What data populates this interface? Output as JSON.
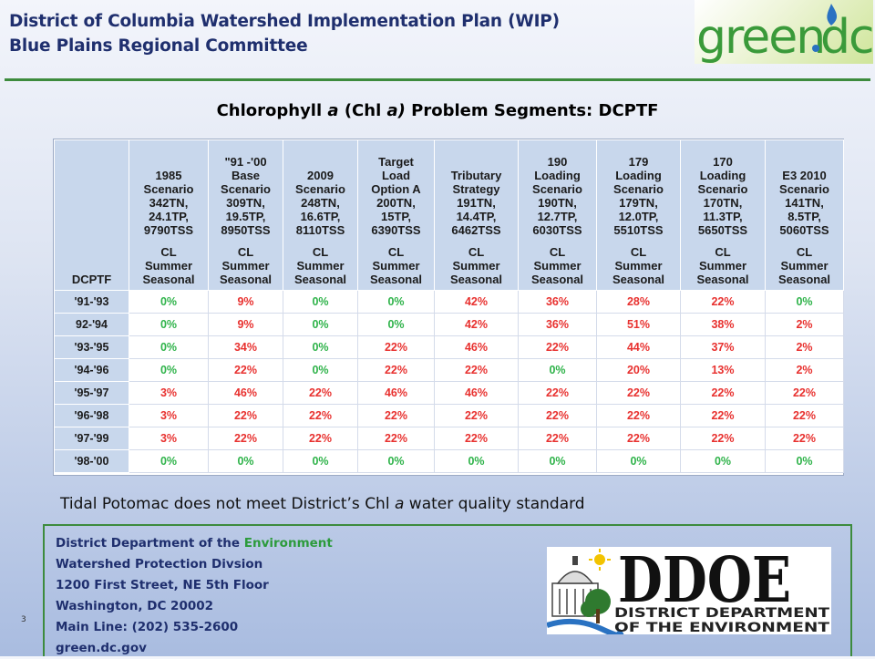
{
  "header": {
    "line1": "District of Columbia Watershed Implementation Plan (WIP)",
    "line2": "Blue Plains Regional Committee"
  },
  "logo": {
    "text_green": "green",
    "text_dc": "dc",
    "colors": {
      "green": "#3a9a3a",
      "blue": "#2a72c2"
    }
  },
  "title": {
    "part1": "Chlorophyll ",
    "a1": "a",
    "part2": " (Chl ",
    "a2": "a)",
    "part3": " Problem Segments: DCPTF"
  },
  "table": {
    "row_header_label": "DCPTF",
    "columns": [
      {
        "scenario": [
          "1985",
          "Scenario",
          "342TN,",
          "24.1TP,",
          "9790TSS"
        ],
        "cl": [
          "CL",
          "Summer",
          "Seasonal"
        ]
      },
      {
        "scenario": [
          "\"91 -'00",
          "Base",
          "Scenario",
          "309TN,",
          "19.5TP,",
          "8950TSS"
        ],
        "cl": [
          "CL",
          "Summer",
          "Seasonal"
        ]
      },
      {
        "scenario": [
          "2009",
          "Scenario",
          "248TN,",
          "16.6TP,",
          "8110TSS"
        ],
        "cl": [
          "CL",
          "Summer",
          "Seasonal"
        ]
      },
      {
        "scenario": [
          "Target",
          "Load",
          "Option A",
          "200TN,",
          "15TP,",
          "6390TSS"
        ],
        "cl": [
          "CL",
          "Summer",
          "Seasonal"
        ]
      },
      {
        "scenario": [
          "Tributary",
          "Strategy",
          "191TN,",
          "14.4TP,",
          "6462TSS"
        ],
        "cl": [
          "CL",
          "Summer",
          "Seasonal"
        ]
      },
      {
        "scenario": [
          "190",
          "Loading",
          "Scenario",
          "190TN,",
          "12.7TP,",
          "6030TSS"
        ],
        "cl": [
          "CL",
          "Summer",
          "Seasonal"
        ]
      },
      {
        "scenario": [
          "179",
          "Loading",
          "Scenario",
          "179TN,",
          "12.0TP,",
          "5510TSS"
        ],
        "cl": [
          "CL",
          "Summer",
          "Seasonal"
        ]
      },
      {
        "scenario": [
          "170",
          "Loading",
          "Scenario",
          "170TN,",
          "11.3TP,",
          "5650TSS"
        ],
        "cl": [
          "CL",
          "Summer",
          "Seasonal"
        ]
      },
      {
        "scenario": [
          "E3 2010",
          "Scenario",
          "141TN,",
          "8.5TP,",
          "5060TSS"
        ],
        "cl": [
          "CL",
          "Summer",
          "Seasonal"
        ]
      }
    ],
    "rows": [
      {
        "label": "'91-'93",
        "values": [
          "0%",
          "9%",
          "0%",
          "0%",
          "42%",
          "36%",
          "28%",
          "22%",
          "0%"
        ]
      },
      {
        "label": "92-'94",
        "values": [
          "0%",
          "9%",
          "0%",
          "0%",
          "42%",
          "36%",
          "51%",
          "38%",
          "2%"
        ]
      },
      {
        "label": "'93-'95",
        "values": [
          "0%",
          "34%",
          "0%",
          "22%",
          "46%",
          "22%",
          "44%",
          "37%",
          "2%"
        ]
      },
      {
        "label": "'94-'96",
        "values": [
          "0%",
          "22%",
          "0%",
          "22%",
          "22%",
          "0%",
          "20%",
          "13%",
          "2%"
        ]
      },
      {
        "label": "'95-'97",
        "values": [
          "3%",
          "46%",
          "22%",
          "46%",
          "46%",
          "22%",
          "22%",
          "22%",
          "22%"
        ]
      },
      {
        "label": "'96-'98",
        "values": [
          "3%",
          "22%",
          "22%",
          "22%",
          "22%",
          "22%",
          "22%",
          "22%",
          "22%"
        ]
      },
      {
        "label": "'97-'99",
        "values": [
          "3%",
          "22%",
          "22%",
          "22%",
          "22%",
          "22%",
          "22%",
          "22%",
          "22%"
        ]
      },
      {
        "label": "'98-'00",
        "values": [
          "0%",
          "0%",
          "0%",
          "0%",
          "0%",
          "0%",
          "0%",
          "0%",
          "0%"
        ]
      }
    ],
    "colors": {
      "zero": "#2fb34a",
      "nonzero": "#e8312f",
      "header_bg": "#c8d7ec"
    }
  },
  "note": {
    "part1": "Tidal Potomac does not meet District’s Chl ",
    "a": "a",
    "part2": " water quality standard"
  },
  "contact": {
    "line1_prefix": "District Department of the ",
    "line1_env": "Environment",
    "line2": "Watershed Protection Divsion",
    "line3": "1200 First Street, NE 5th Floor",
    "line4": "Washington, DC 20002",
    "line5": "Main Line: (202) 535-2600",
    "line6": "green.dc.gov"
  },
  "page_number": "3",
  "ddoe_logo": {
    "big": "DDOE",
    "sub1": "DISTRICT DEPARTMENT",
    "sub2": "OF THE ENVIRONMENT"
  }
}
